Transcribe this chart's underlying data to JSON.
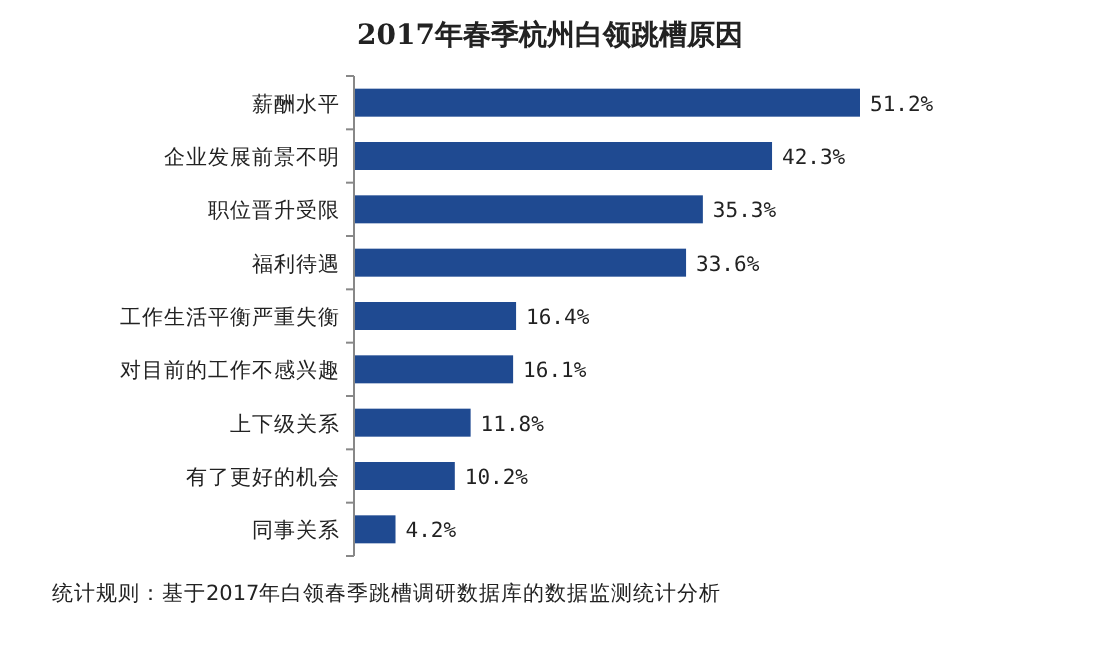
{
  "chart_data": {
    "type": "bar",
    "orientation": "horizontal",
    "title": "2017年春季杭州白领跳槽原因",
    "categories": [
      "薪酬水平",
      "企业发展前景不明",
      "职位晋升受限",
      "福利待遇",
      "工作生活平衡严重失衡",
      "对目前的工作不感兴趣",
      "上下级关系",
      "有了更好的机会",
      "同事关系"
    ],
    "values": [
      51.2,
      42.3,
      35.3,
      33.6,
      16.4,
      16.1,
      11.8,
      10.2,
      4.2
    ],
    "value_labels": [
      "51.2%",
      "42.3%",
      "35.3%",
      "33.6%",
      "16.4%",
      "16.1%",
      "11.8%",
      "10.2%",
      "4.2%"
    ],
    "color": "#1f4a91",
    "annotations": [
      "统计规则：基于2017年白领春季跳槽调研数据库的数据监测统计分析"
    ]
  }
}
